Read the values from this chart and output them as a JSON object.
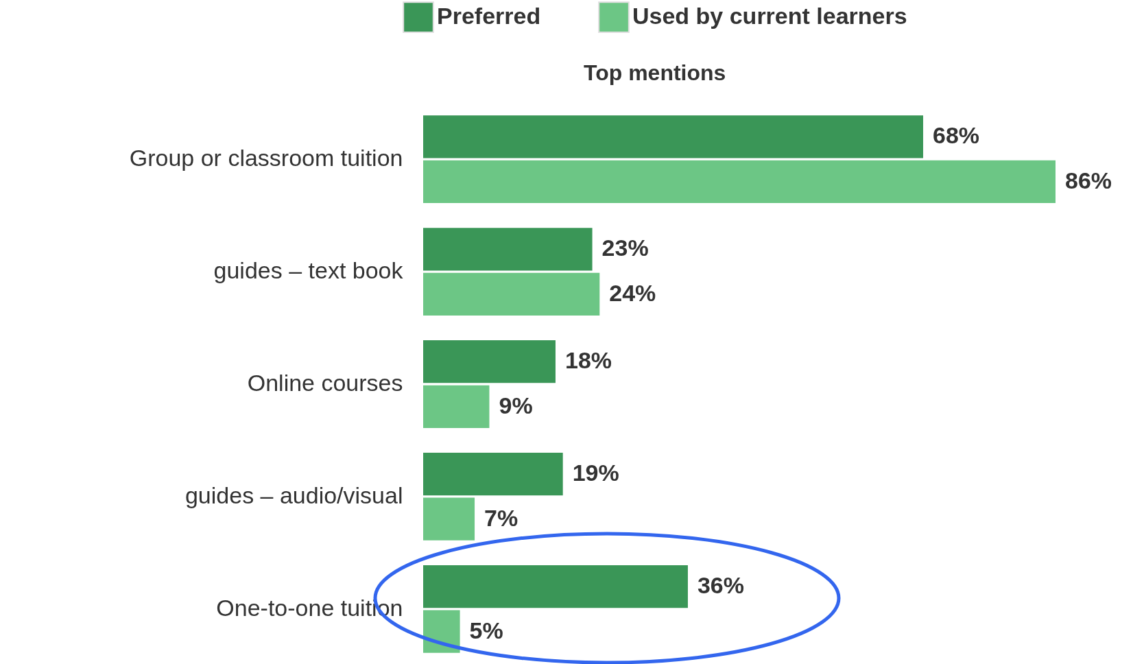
{
  "chart_data": {
    "type": "bar",
    "orientation": "horizontal",
    "title": "Top mentions",
    "categories": [
      "Group or classroom tuition",
      "guides – text book",
      "Online courses",
      "guides – audio/visual",
      "One-to-one tuition"
    ],
    "series": [
      {
        "name": "Preferred",
        "color": "#3a9657",
        "values": [
          68,
          23,
          18,
          19,
          36
        ],
        "value_labels": [
          "68%",
          "23%",
          "18%",
          "19%",
          "36%"
        ]
      },
      {
        "name": "Used by current learners",
        "color": "#6cc685",
        "values": [
          86,
          24,
          9,
          7,
          5
        ],
        "value_labels": [
          "86%",
          "24%",
          "9%",
          "7%",
          "5%"
        ]
      }
    ],
    "legend": "top"
  }
}
